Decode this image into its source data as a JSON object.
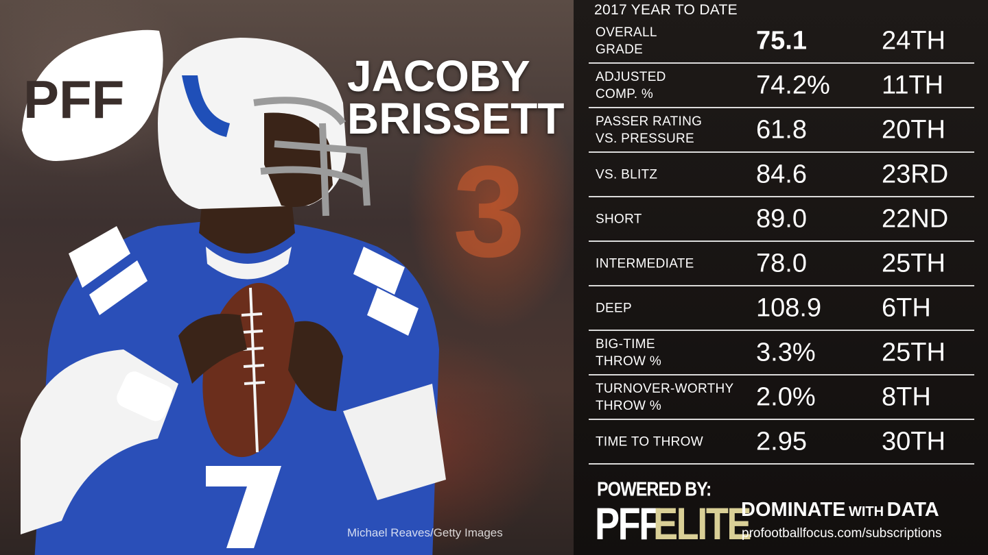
{
  "brand": {
    "logo_text": "PFF"
  },
  "player": {
    "first_name": "JACOBY",
    "last_name": "BRISSETT",
    "jersey_number": "7"
  },
  "photo_credit": "Michael Reaves/Getty Images",
  "stats": {
    "title": "2017 YEAR TO DATE",
    "rows": [
      {
        "label": "OVERALL\nGRADE",
        "value": "75.1",
        "rank": "24TH"
      },
      {
        "label": "ADJUSTED\nCOMP. %",
        "value": "74.2%",
        "rank": "11TH"
      },
      {
        "label": "PASSER RATING\nVS. PRESSURE",
        "value": "61.8",
        "rank": "20TH"
      },
      {
        "label": "VS. BLITZ",
        "value": "84.6",
        "rank": "23RD"
      },
      {
        "label": "SHORT",
        "value": "89.0",
        "rank": "22ND"
      },
      {
        "label": "INTERMEDIATE",
        "value": "78.0",
        "rank": "25TH"
      },
      {
        "label": "DEEP",
        "value": "108.9",
        "rank": "6TH"
      },
      {
        "label": "BIG-TIME\nTHROW %",
        "value": "3.3%",
        "rank": "25TH"
      },
      {
        "label": "TURNOVER-WORTHY\nTHROW %",
        "value": "2.0%",
        "rank": "8TH"
      },
      {
        "label": "TIME TO THROW",
        "value": "2.95",
        "rank": "30TH"
      }
    ]
  },
  "footer": {
    "powered_by": "POWERED BY:",
    "brand_pff": "PFF",
    "brand_elite": "ELITE",
    "tag_dominate": "DOMINATE",
    "tag_with": "WITH",
    "tag_data": "DATA",
    "url": "profootballfocus.com/subscriptions"
  },
  "colors": {
    "jersey_blue": "#2a4fb8",
    "elite_gold": "#d9cf96",
    "panel_bg": "#1c1816"
  }
}
